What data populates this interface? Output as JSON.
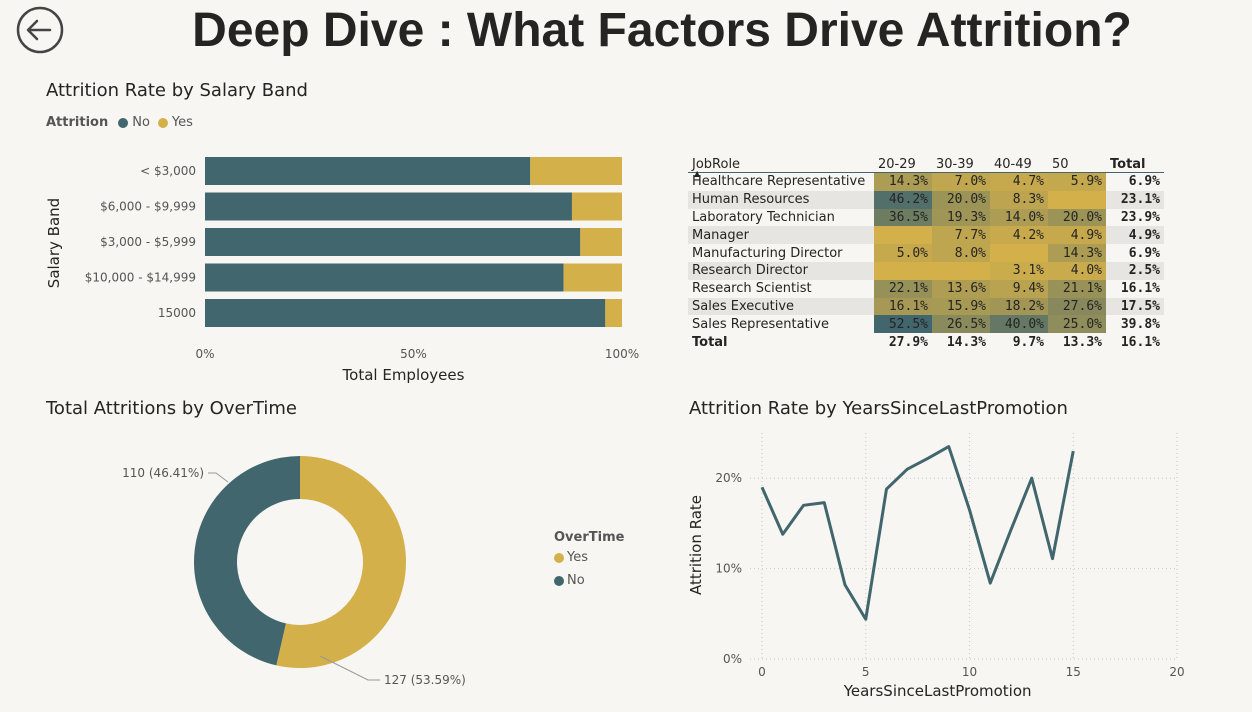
{
  "page": {
    "title": "Deep Dive : What Factors Drive Attrition?"
  },
  "colors": {
    "no": "#41666d",
    "yes": "#d4b04a",
    "background": "#f7f6f2"
  },
  "salary_chart": {
    "title": "Attrition Rate by Salary Band",
    "legend_title": "Attrition",
    "legend_no": "No",
    "legend_yes": "Yes"
  },
  "matrix": {
    "header_role": "JobRole",
    "columns": [
      "20-29",
      "30-39",
      "40-49",
      "50"
    ],
    "header_total": "Total",
    "rows": [
      {
        "role": "Healthcare Representative",
        "values": [
          "14.3%",
          "7.0%",
          "4.7%",
          "5.9%"
        ],
        "total": "6.9%"
      },
      {
        "role": "Human Resources",
        "values": [
          "46.2%",
          "20.0%",
          "8.3%",
          ""
        ],
        "total": "23.1%"
      },
      {
        "role": "Laboratory Technician",
        "values": [
          "36.5%",
          "19.3%",
          "14.0%",
          "20.0%"
        ],
        "total": "23.9%"
      },
      {
        "role": "Manager",
        "values": [
          "",
          "7.7%",
          "4.2%",
          "4.9%"
        ],
        "total": "4.9%"
      },
      {
        "role": "Manufacturing Director",
        "values": [
          "5.0%",
          "8.0%",
          "",
          "14.3%"
        ],
        "total": "6.9%"
      },
      {
        "role": "Research Director",
        "values": [
          "",
          "",
          "3.1%",
          "4.0%"
        ],
        "total": "2.5%"
      },
      {
        "role": "Research Scientist",
        "values": [
          "22.1%",
          "13.6%",
          "9.4%",
          "21.1%"
        ],
        "total": "16.1%"
      },
      {
        "role": "Sales Executive",
        "values": [
          "16.1%",
          "15.9%",
          "18.2%",
          "27.6%"
        ],
        "total": "17.5%"
      },
      {
        "role": "Sales Representative",
        "values": [
          "52.5%",
          "26.5%",
          "40.0%",
          "25.0%"
        ],
        "total": "39.8%"
      }
    ],
    "total_row": {
      "label": "Total",
      "values": [
        "27.9%",
        "14.3%",
        "9.7%",
        "13.3%"
      ],
      "total": "16.1%"
    }
  },
  "donut_chart": {
    "title": "Total Attritions by OverTime",
    "legend_title": "OverTime",
    "legend_yes": "Yes",
    "legend_no": "No"
  },
  "line_chart_meta": {
    "title": "Attrition Rate by YearsSinceLastPromotion"
  },
  "chart_data": [
    {
      "type": "bar",
      "orientation": "horizontal-100%-stacked",
      "title": "Attrition Rate by Salary Band",
      "xlabel": "Total Employees",
      "ylabel": "Salary Band",
      "categories": [
        "< $3,000",
        "$6,000 - $9,999",
        "$3,000 - $5,999",
        "$10,000 - $14,999",
        "15000"
      ],
      "series": [
        {
          "name": "No",
          "values": [
            78,
            88,
            90,
            86,
            96
          ]
        },
        {
          "name": "Yes",
          "values": [
            22,
            12,
            10,
            14,
            4
          ]
        }
      ],
      "xticks": [
        "0%",
        "50%",
        "100%"
      ],
      "xlim": [
        0,
        100
      ],
      "legend": "top-left"
    },
    {
      "type": "table",
      "title": "",
      "note": "matrix of attrition rate by JobRole and age band, see matrix"
    },
    {
      "type": "pie",
      "variant": "donut",
      "title": "Total Attritions by OverTime",
      "slices": [
        {
          "name": "Yes",
          "value": 127,
          "label": "127 (53.59%)"
        },
        {
          "name": "No",
          "value": 110,
          "label": "110 (46.41%)"
        }
      ],
      "legend": "right"
    },
    {
      "type": "line",
      "title": "Attrition Rate by YearsSinceLastPromotion",
      "xlabel": "YearsSinceLastPromotion",
      "ylabel": "Attrition Rate",
      "x": [
        0,
        1,
        2,
        3,
        4,
        5,
        6,
        7,
        8,
        9,
        10,
        11,
        12,
        13,
        14,
        15
      ],
      "y": [
        19.0,
        13.8,
        17.0,
        17.3,
        8.2,
        4.4,
        18.8,
        21.0,
        22.2,
        23.5,
        16.5,
        8.4,
        14.3,
        20.0,
        11.1,
        23.0
      ],
      "xlim": [
        0,
        20
      ],
      "ylim": [
        0,
        25
      ],
      "xticks": [
        "0",
        "5",
        "10",
        "15",
        "20"
      ],
      "yticks": [
        "0%",
        "10%",
        "20%"
      ],
      "grid": true
    }
  ]
}
